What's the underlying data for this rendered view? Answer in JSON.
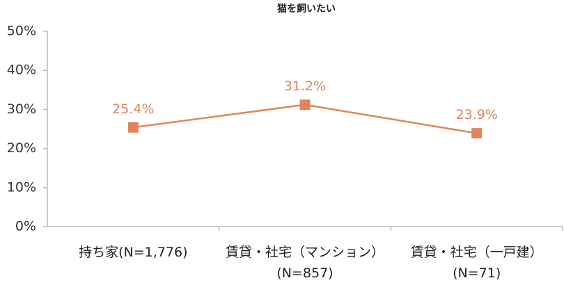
{
  "chart_data": {
    "type": "line",
    "title": "猫を飼いたい",
    "categories": [
      "持ち家(N=1,776)",
      "賃貸・社宅（マンション）\n(N=857)",
      "賃貸・社宅（一戸建）\n(N=71)"
    ],
    "series": [
      {
        "name": "猫を飼いたい",
        "color": "#e2845a",
        "values": [
          25.4,
          31.2,
          23.9
        ],
        "value_labels": [
          "25.4%",
          "31.2%",
          "23.9%"
        ]
      }
    ],
    "ylim": [
      0,
      50
    ],
    "yticks": [
      {
        "value": 0,
        "label": "0%"
      },
      {
        "value": 10,
        "label": "10%"
      },
      {
        "value": 20,
        "label": "20%"
      },
      {
        "value": 30,
        "label": "30%"
      },
      {
        "value": 40,
        "label": "40%"
      },
      {
        "value": 50,
        "label": "50%"
      }
    ],
    "grid": false
  }
}
